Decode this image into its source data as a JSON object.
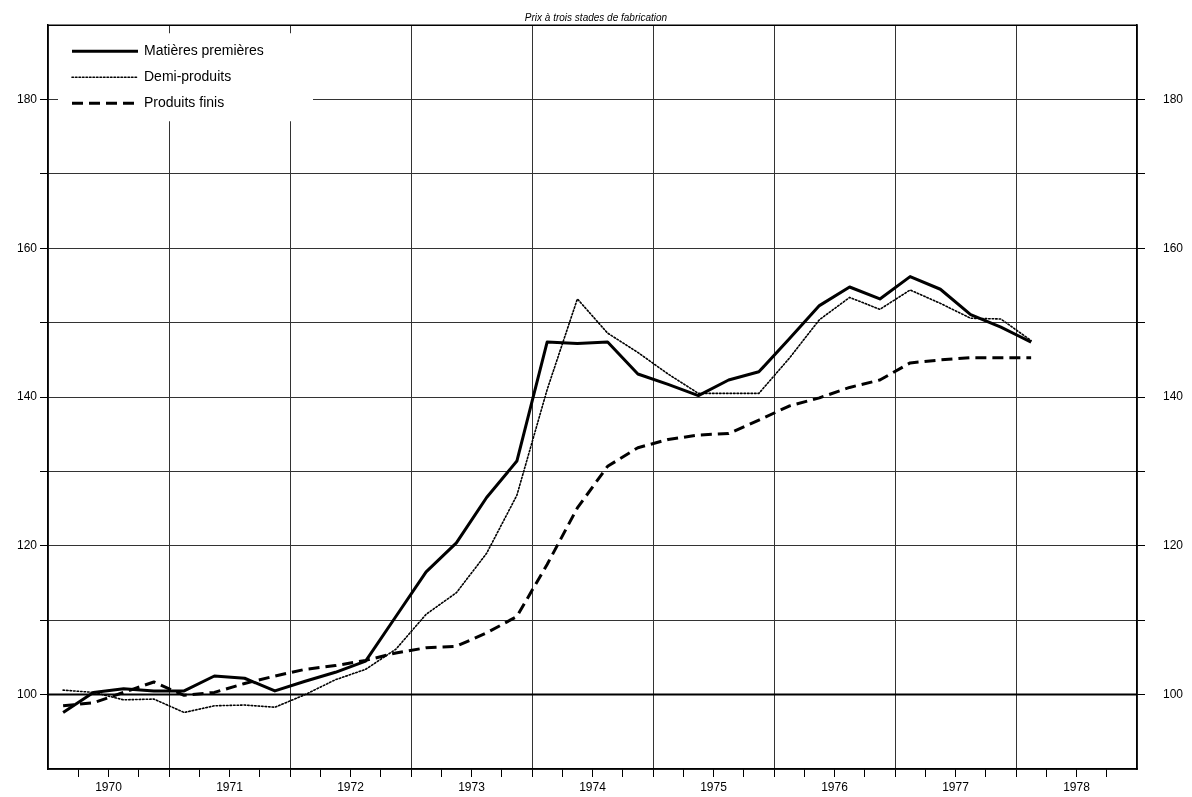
{
  "chart_data": {
    "type": "line",
    "title": "Prix à trois stades de fabrication",
    "x": [
      1970.125,
      1970.375,
      1970.625,
      1970.875,
      1971.125,
      1971.375,
      1971.625,
      1971.875,
      1972.125,
      1972.375,
      1972.625,
      1972.875,
      1973.125,
      1973.375,
      1973.625,
      1973.875,
      1974.125,
      1974.375,
      1974.625,
      1974.875,
      1975.125,
      1975.375,
      1975.625,
      1975.875,
      1976.125,
      1976.375,
      1976.625,
      1976.875,
      1977.125,
      1977.375,
      1977.625,
      1977.875,
      1978.125
    ],
    "series": [
      {
        "name": "Matières premières",
        "color": "#000000",
        "line_style": "solid",
        "values": [
          97.6,
          100.3,
          100.8,
          100.5,
          100.5,
          102.5,
          102.2,
          100.5,
          101.8,
          103,
          104.5,
          110.5,
          116.5,
          120.4,
          126.5,
          131.4,
          147.4,
          147.2,
          147.4,
          143.1,
          141.7,
          140.2,
          142.3,
          143.4,
          147.8,
          152.3,
          154.8,
          153.2,
          156.2,
          154.5,
          151.1,
          149.4,
          147.4
        ]
      },
      {
        "name": "Demi-produits",
        "color": "#000000",
        "line_style": "dotted",
        "values": [
          100.6,
          100.3,
          99.3,
          99.4,
          97.6,
          98.5,
          98.6,
          98.3,
          100,
          102,
          103.4,
          106.1,
          110.8,
          113.7,
          119,
          126.8,
          141,
          153.2,
          148.6,
          146,
          143.1,
          140.5,
          140.5,
          140.5,
          145.2,
          150.4,
          153.4,
          151.8,
          154.4,
          152.6,
          150.6,
          150.5,
          147.6
        ]
      },
      {
        "name": "Produits finis",
        "color": "#000000",
        "line_style": "dashed",
        "values": [
          98.5,
          98.9,
          100.3,
          101.7,
          99.9,
          100.3,
          101.5,
          102.5,
          103.4,
          103.9,
          104.6,
          105.6,
          106.3,
          106.5,
          108.3,
          110.5,
          117.5,
          125.1,
          130.7,
          133.2,
          134.3,
          134.9,
          135.1,
          136.9,
          138.8,
          139.9,
          141.3,
          142.3,
          144.6,
          145,
          145.3,
          145.3,
          145.3
        ]
      }
    ],
    "xlim": [
      1970,
      1979
    ],
    "xticks": [
      {
        "value": 1970.25,
        "label": null
      },
      {
        "value": 1970.5,
        "label": "1970"
      },
      {
        "value": 1970.75,
        "label": null
      },
      {
        "value": 1971,
        "label": null
      },
      {
        "value": 1971.25,
        "label": null
      },
      {
        "value": 1971.5,
        "label": "1971"
      },
      {
        "value": 1971.75,
        "label": null
      },
      {
        "value": 1972,
        "label": null
      },
      {
        "value": 1972.25,
        "label": null
      },
      {
        "value": 1972.5,
        "label": "1972"
      },
      {
        "value": 1972.75,
        "label": null
      },
      {
        "value": 1973,
        "label": null
      },
      {
        "value": 1973.25,
        "label": null
      },
      {
        "value": 1973.5,
        "label": "1973"
      },
      {
        "value": 1973.75,
        "label": null
      },
      {
        "value": 1974,
        "label": null
      },
      {
        "value": 1974.25,
        "label": null
      },
      {
        "value": 1974.5,
        "label": "1974"
      },
      {
        "value": 1974.75,
        "label": null
      },
      {
        "value": 1975,
        "label": null
      },
      {
        "value": 1975.25,
        "label": null
      },
      {
        "value": 1975.5,
        "label": "1975"
      },
      {
        "value": 1975.75,
        "label": null
      },
      {
        "value": 1976,
        "label": null
      },
      {
        "value": 1976.25,
        "label": null
      },
      {
        "value": 1976.5,
        "label": "1976"
      },
      {
        "value": 1976.75,
        "label": null
      },
      {
        "value": 1977,
        "label": null
      },
      {
        "value": 1977.25,
        "label": null
      },
      {
        "value": 1977.5,
        "label": "1977"
      },
      {
        "value": 1977.75,
        "label": null
      },
      {
        "value": 1978,
        "label": null
      },
      {
        "value": 1978.25,
        "label": null
      },
      {
        "value": 1978.5,
        "label": "1978"
      },
      {
        "value": 1978.75,
        "label": null
      }
    ],
    "ylim": [
      90,
      190
    ],
    "yticks": [
      {
        "value": 100,
        "label": "100"
      },
      {
        "value": 110,
        "label": null
      },
      {
        "value": 120,
        "label": "120"
      },
      {
        "value": 130,
        "label": null
      },
      {
        "value": 140,
        "label": "140"
      },
      {
        "value": 150,
        "label": null
      },
      {
        "value": 160,
        "label": "160"
      },
      {
        "value": 170,
        "label": null
      },
      {
        "value": 180,
        "label": "180"
      }
    ],
    "y2lim": [
      90,
      190
    ],
    "y2ticks": [
      {
        "value": 100,
        "label": "100"
      },
      {
        "value": 110,
        "label": null
      },
      {
        "value": 120,
        "label": "120"
      },
      {
        "value": 130,
        "label": null
      },
      {
        "value": 140,
        "label": "140"
      },
      {
        "value": 150,
        "label": null
      },
      {
        "value": 160,
        "label": "160"
      },
      {
        "value": 170,
        "label": null
      },
      {
        "value": 180,
        "label": "180"
      }
    ],
    "ref_lines": [
      {
        "axis": "y",
        "value": 100,
        "color": "#000000"
      }
    ],
    "grid": true,
    "legend": "top left",
    "marker": "none"
  }
}
